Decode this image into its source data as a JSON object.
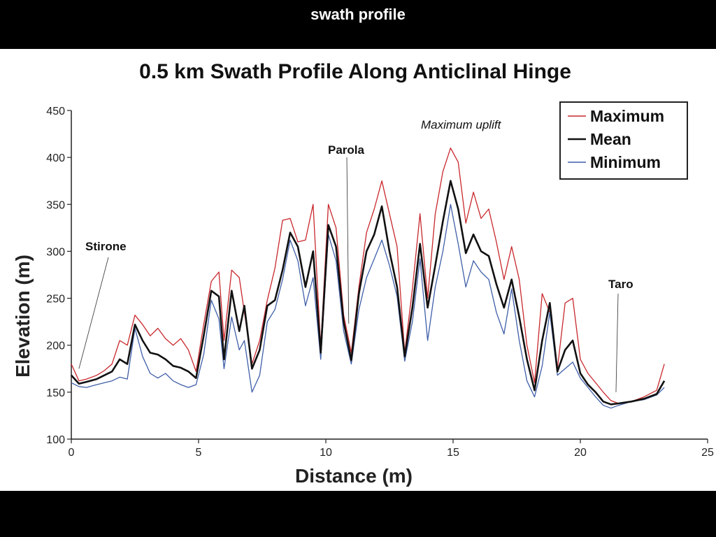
{
  "slide": {
    "title": "swath profile"
  },
  "chart_data": {
    "type": "line",
    "title": "0.5 km Swath Profile Along Anticlinal Hinge",
    "xlabel": "Distance (m)",
    "ylabel": "Elevation (m)",
    "xlim": [
      0,
      25
    ],
    "ylim": [
      100,
      450
    ],
    "xticks": [
      0,
      5,
      10,
      15,
      20,
      25
    ],
    "yticks": [
      100,
      150,
      200,
      250,
      300,
      350,
      400,
      450
    ],
    "grid": false,
    "legend_position": "top-right",
    "colors": {
      "Maximum": "#c8282d",
      "Mean": "#111111",
      "Minimum": "#3f5fa8"
    },
    "x": [
      0,
      0.3,
      0.6,
      1,
      1.3,
      1.6,
      1.9,
      2.2,
      2.5,
      2.8,
      3.1,
      3.4,
      3.7,
      4,
      4.3,
      4.6,
      4.9,
      5.2,
      5.5,
      5.8,
      6.0,
      6.3,
      6.6,
      6.8,
      7.1,
      7.4,
      7.7,
      8.0,
      8.3,
      8.6,
      8.9,
      9.2,
      9.5,
      9.8,
      10.1,
      10.4,
      10.7,
      11.0,
      11.3,
      11.6,
      11.9,
      12.2,
      12.5,
      12.8,
      13.1,
      13.4,
      13.7,
      14.0,
      14.3,
      14.6,
      14.9,
      15.2,
      15.5,
      15.8,
      16.1,
      16.4,
      16.7,
      17.0,
      17.3,
      17.6,
      17.9,
      18.2,
      18.5,
      18.8,
      19.1,
      19.4,
      19.7,
      20.0,
      20.3,
      20.6,
      20.9,
      21.2,
      21.5,
      22.0,
      22.5,
      23.0,
      23.3
    ],
    "series": [
      {
        "name": "Maximum",
        "values": [
          180,
          162,
          164,
          168,
          173,
          180,
          205,
          200,
          232,
          222,
          210,
          218,
          207,
          200,
          207,
          195,
          172,
          222,
          268,
          278,
          205,
          280,
          272,
          235,
          180,
          205,
          248,
          282,
          333,
          335,
          310,
          312,
          350,
          198,
          350,
          325,
          232,
          192,
          262,
          320,
          345,
          375,
          340,
          305,
          192,
          260,
          340,
          250,
          340,
          385,
          410,
          395,
          330,
          363,
          335,
          345,
          310,
          270,
          305,
          270,
          200,
          160,
          255,
          235,
          175,
          245,
          250,
          185,
          170,
          160,
          150,
          141,
          138,
          140,
          145,
          152,
          180
        ]
      },
      {
        "name": "Mean",
        "values": [
          168,
          159,
          161,
          164,
          168,
          172,
          185,
          180,
          222,
          205,
          192,
          190,
          185,
          178,
          176,
          172,
          165,
          210,
          258,
          252,
          185,
          258,
          215,
          242,
          175,
          195,
          242,
          248,
          280,
          320,
          305,
          262,
          300,
          192,
          328,
          305,
          225,
          184,
          255,
          300,
          318,
          348,
          300,
          262,
          188,
          240,
          308,
          240,
          285,
          332,
          375,
          345,
          298,
          318,
          300,
          295,
          265,
          240,
          270,
          230,
          185,
          152,
          205,
          245,
          172,
          195,
          205,
          170,
          158,
          150,
          140,
          137,
          138,
          140,
          143,
          148,
          162
        ]
      },
      {
        "name": "Minimum",
        "values": [
          160,
          156,
          155,
          158,
          160,
          162,
          166,
          164,
          218,
          188,
          170,
          165,
          170,
          162,
          158,
          155,
          158,
          190,
          248,
          228,
          175,
          230,
          195,
          205,
          150,
          168,
          225,
          238,
          270,
          312,
          290,
          242,
          272,
          185,
          318,
          290,
          215,
          180,
          238,
          272,
          292,
          312,
          285,
          252,
          183,
          225,
          292,
          205,
          262,
          300,
          350,
          308,
          262,
          290,
          278,
          270,
          235,
          212,
          260,
          205,
          162,
          145,
          178,
          235,
          168,
          175,
          182,
          165,
          155,
          145,
          136,
          133,
          136,
          140,
          142,
          147,
          155
        ]
      }
    ],
    "annotations": [
      {
        "label": "Stirone",
        "x": 0.3,
        "y": 175
      },
      {
        "label": "Parola",
        "x": 10.9,
        "y": 223
      },
      {
        "label": "Taro",
        "x": 21.4,
        "y": 150
      },
      {
        "label": "Maximum uplift",
        "italic": true
      }
    ]
  }
}
